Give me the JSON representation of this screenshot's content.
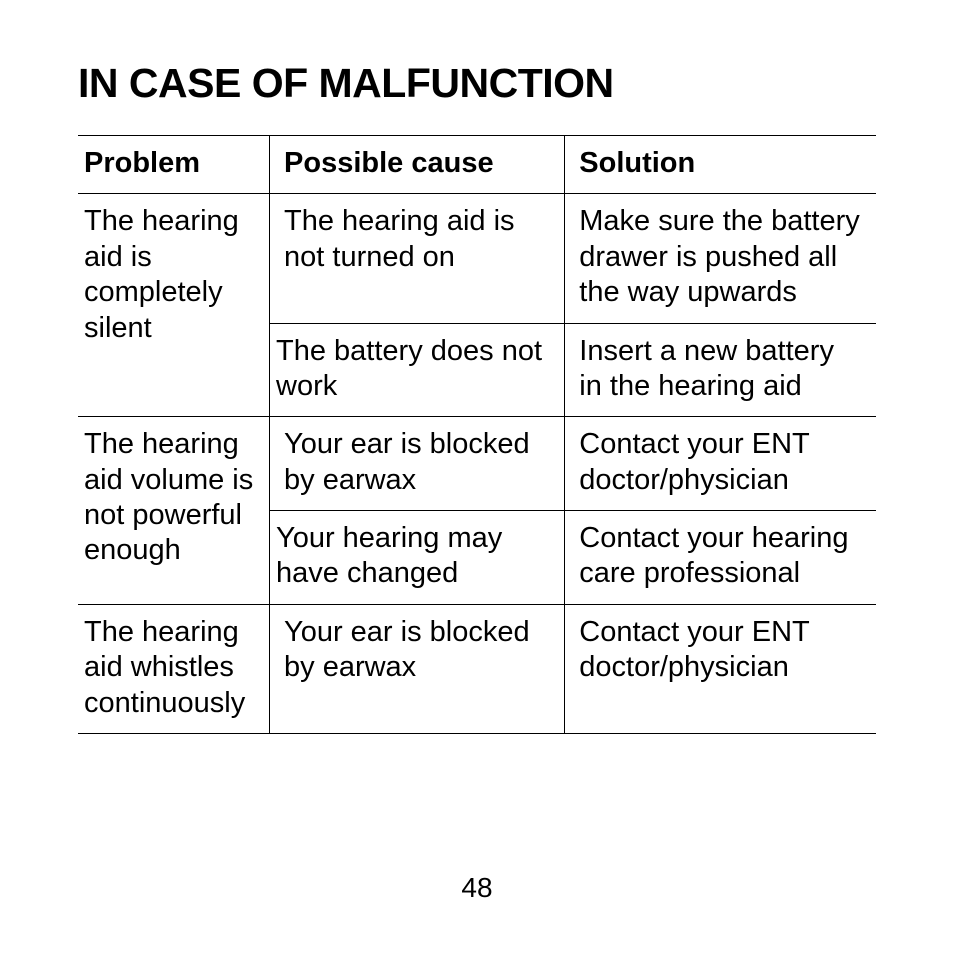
{
  "title": "IN CASE OF MALFUNCTION",
  "table": {
    "columns": [
      "Problem",
      "Possible cause",
      "Solution"
    ],
    "column_widths_pct": [
      24,
      37,
      39
    ],
    "header_fontsize": 29,
    "cell_fontsize": 29,
    "border_color": "#000000",
    "background_color": "#ffffff",
    "text_color": "#000000",
    "rows": [
      {
        "problem": "The hearing aid is completely silent",
        "problem_rowspan": 2,
        "cause": "The hearing aid is not turned on",
        "solution": "Make sure the battery drawer is pushed all the way upwards"
      },
      {
        "cause": "The battery does not work",
        "solution": "Insert a new battery in the hearing aid"
      },
      {
        "problem": "The hearing aid volume is not powerful enough",
        "problem_rowspan": 2,
        "cause": "Your ear is blocked by earwax",
        "solution": "Contact your ENT doc­tor/physician"
      },
      {
        "cause": "Your hearing may have changed",
        "solution": "Contact your hearing care professional"
      },
      {
        "problem": "The hearing aid whistles continu­ously",
        "problem_rowspan": 1,
        "cause": "Your ear is blocked by earwax",
        "solution": "Contact your ENT doc­tor/physician"
      }
    ]
  },
  "page_number": "48",
  "title_fontsize": 41
}
